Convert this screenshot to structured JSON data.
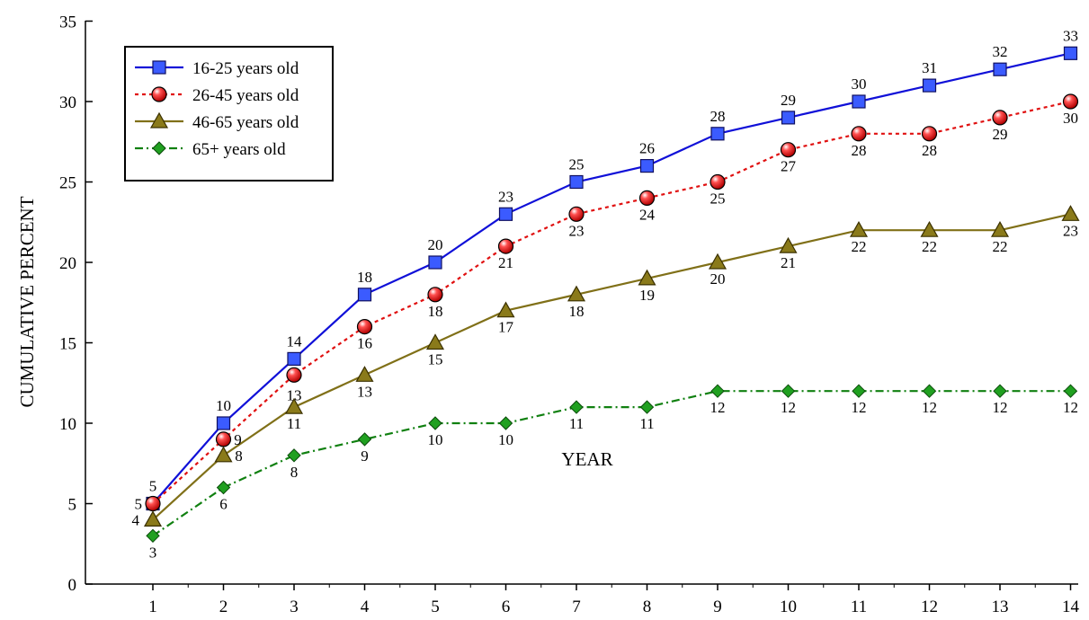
{
  "chart_data": {
    "type": "line",
    "title": "",
    "xlabel": "YEAR",
    "ylabel": "CUMULATIVE PERCENT",
    "x": [
      1,
      2,
      3,
      4,
      5,
      6,
      7,
      8,
      9,
      10,
      11,
      12,
      13,
      14
    ],
    "xticks": [
      "1",
      "2",
      "3",
      "4",
      "5",
      "6",
      "7",
      "8",
      "9",
      "10",
      "11",
      "12",
      "13",
      "14"
    ],
    "ylim": [
      0,
      35
    ],
    "yticks": [
      "0",
      "5",
      "10",
      "15",
      "20",
      "25",
      "30",
      "35"
    ],
    "grid": false,
    "legend_position": "top-left",
    "series": [
      {
        "name": "16-25 years old",
        "values": [
          5,
          10,
          14,
          18,
          20,
          23,
          25,
          26,
          28,
          29,
          30,
          31,
          32,
          33
        ],
        "labels": [
          "5",
          "10",
          "14",
          "18",
          "20",
          "23",
          "25",
          "26",
          "28",
          "29",
          "30",
          "31",
          "32",
          "33"
        ],
        "color": "#1010d8",
        "marker_color": "#3b5bff",
        "line_style": "solid",
        "marker": "square",
        "label_position": "above"
      },
      {
        "name": "26-45 years old",
        "values": [
          5,
          9,
          13,
          16,
          18,
          21,
          23,
          24,
          25,
          27,
          28,
          28,
          29,
          30
        ],
        "labels": [
          "5",
          "9",
          "13",
          "16",
          "18",
          "21",
          "23",
          "24",
          "25",
          "27",
          "28",
          "28",
          "29",
          "30"
        ],
        "color": "#e01010",
        "marker_color": "#e01010",
        "line_style": "dotted",
        "marker": "circle",
        "label_position": "below"
      },
      {
        "name": "46-65 years old",
        "values": [
          4,
          8,
          11,
          13,
          15,
          17,
          18,
          19,
          20,
          21,
          22,
          22,
          22,
          23
        ],
        "labels": [
          "4",
          "8",
          "11",
          "13",
          "15",
          "17",
          "18",
          "19",
          "20",
          "21",
          "22",
          "22",
          "22",
          "23"
        ],
        "color": "#807018",
        "marker_color": "#8a7a1a",
        "line_style": "solid",
        "marker": "triangle",
        "label_position": "below"
      },
      {
        "name": "65+ years old",
        "values": [
          3,
          6,
          8,
          9,
          10,
          10,
          11,
          11,
          12,
          12,
          12,
          12,
          12,
          12
        ],
        "labels": [
          "3",
          "6",
          "8",
          "9",
          "10",
          "10",
          "11",
          "11",
          "12",
          "12",
          "12",
          "12",
          "12",
          "12"
        ],
        "color": "#108010",
        "marker_color": "#20a020",
        "line_style": "dashdot",
        "marker": "diamond",
        "label_position": "below"
      }
    ]
  }
}
